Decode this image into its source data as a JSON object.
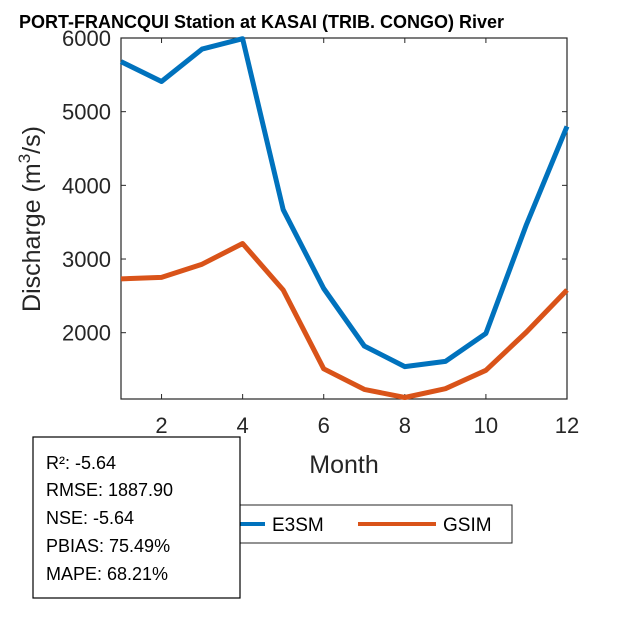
{
  "chart_data": {
    "type": "line",
    "title": "PORT-FRANCQUI  Station at  KASAI (TRIB. CONGO)  River",
    "xlabel": "Month",
    "ylabel_main": "Discharge (m",
    "ylabel_sup": "3",
    "ylabel_end": "/s)",
    "x": [
      1,
      2,
      3,
      4,
      5,
      6,
      7,
      8,
      9,
      10,
      11,
      12
    ],
    "xlim": [
      1,
      12
    ],
    "ylim": [
      1100,
      6000
    ],
    "xticks": [
      2,
      4,
      6,
      8,
      10,
      12
    ],
    "yticks": [
      2000,
      3000,
      4000,
      5000,
      6000
    ],
    "grid": false,
    "legend_position": "bottom-center",
    "series": [
      {
        "name": "E3SM",
        "color": "#0072BD",
        "values": [
          5680,
          5410,
          5850,
          5990,
          3670,
          2600,
          1820,
          1540,
          1610,
          1990,
          3470,
          4800
        ]
      },
      {
        "name": "GSIM",
        "color": "#D95319",
        "values": [
          2730,
          2750,
          2930,
          3210,
          2580,
          1510,
          1230,
          1120,
          1240,
          1490,
          2010,
          2580
        ]
      }
    ]
  },
  "stats": {
    "r2": "R²: -5.64",
    "rmse": "RMSE: 1887.90",
    "nse": "NSE: -5.64",
    "pbias": "PBIAS: 75.49%",
    "mape": "MAPE: 68.21%"
  }
}
